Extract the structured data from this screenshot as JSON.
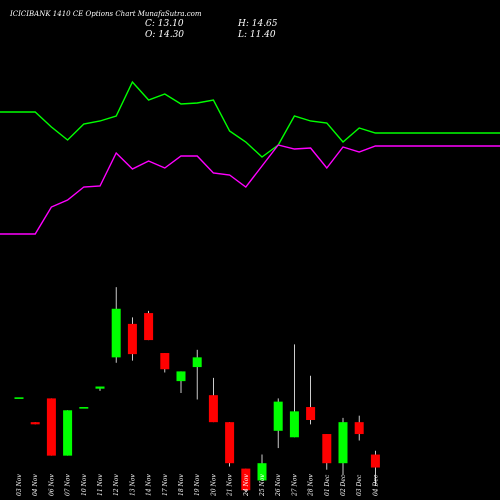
{
  "chart_data": {
    "type": "candlestick",
    "title": "ICICIBANK 1410 CE Options Chart MunafaSutra.com",
    "ohlc_readout": {
      "close": "C: 13.10",
      "open": "O: 14.30",
      "high": "H: 14.65",
      "low": "L: 11.40"
    },
    "categories": [
      "03 Nov",
      "04 Nov",
      "06 Nov",
      "07 Nov",
      "10 Nov",
      "11 Nov",
      "12 Nov",
      "13 Nov",
      "14 Nov",
      "17 Nov",
      "18 Nov",
      "19 Nov",
      "20 Nov",
      "21 Nov",
      "24 Nov",
      "25 Nov",
      "26 Nov",
      "27 Nov",
      "28 Nov",
      "01 Dec",
      "02 Dec",
      "03 Dec",
      "04 Dec"
    ],
    "candles": [
      {
        "o": 19.6,
        "h": 19.6,
        "l": 19.6,
        "c": 19.6
      },
      {
        "o": 17.3,
        "h": 17.3,
        "l": 17.1,
        "c": 17.1
      },
      {
        "o": 19.5,
        "h": 19.5,
        "l": 14.2,
        "c": 14.2
      },
      {
        "o": 14.2,
        "h": 18.4,
        "l": 14.2,
        "c": 18.4
      },
      {
        "o": 18.7,
        "h": 18.7,
        "l": 18.7,
        "c": 18.7
      },
      {
        "o": 20.4,
        "h": 20.6,
        "l": 20.2,
        "c": 20.6
      },
      {
        "o": 23.3,
        "h": 29.8,
        "l": 22.8,
        "c": 27.8
      },
      {
        "o": 26.4,
        "h": 27.0,
        "l": 23.0,
        "c": 23.6
      },
      {
        "o": 27.4,
        "h": 27.6,
        "l": 24.9,
        "c": 24.9
      },
      {
        "o": 23.7,
        "h": 23.7,
        "l": 21.9,
        "c": 22.2
      },
      {
        "o": 21.1,
        "h": 22.0,
        "l": 20.0,
        "c": 22.0
      },
      {
        "o": 22.4,
        "h": 24.0,
        "l": 19.4,
        "c": 23.3
      },
      {
        "o": 19.8,
        "h": 21.4,
        "l": 17.3,
        "c": 17.3
      },
      {
        "o": 17.3,
        "h": 17.3,
        "l": 13.2,
        "c": 13.5
      },
      {
        "o": 13.0,
        "h": 13.0,
        "l": 10.8,
        "c": 11.0
      },
      {
        "o": 11.9,
        "h": 14.3,
        "l": 11.9,
        "c": 13.5
      },
      {
        "o": 16.5,
        "h": 19.5,
        "l": 14.9,
        "c": 19.2
      },
      {
        "o": 15.9,
        "h": 24.5,
        "l": 15.9,
        "c": 18.3
      },
      {
        "o": 18.7,
        "h": 21.6,
        "l": 17.1,
        "c": 17.5
      },
      {
        "o": 16.2,
        "h": 16.2,
        "l": 12.9,
        "c": 13.5
      },
      {
        "o": 13.5,
        "h": 17.7,
        "l": 12.4,
        "c": 17.3
      },
      {
        "o": 17.3,
        "h": 17.9,
        "l": 15.6,
        "c": 16.2
      },
      {
        "o": 14.3,
        "h": 14.65,
        "l": 11.4,
        "c": 13.1
      }
    ],
    "series": [
      {
        "color": "#00ff00",
        "values": [
          112,
          112,
          127,
          140,
          124,
          121,
          116,
          82,
          100,
          94,
          104,
          103,
          100,
          131,
          142,
          157,
          145,
          116,
          121,
          123,
          142,
          128,
          133
        ]
      },
      {
        "color": "#ff00ff",
        "values": [
          234,
          234,
          207,
          200,
          187,
          186,
          153,
          169,
          161,
          168,
          156,
          156,
          173,
          175,
          187,
          166,
          145,
          149,
          148,
          168,
          147,
          152,
          146
        ]
      }
    ],
    "colors": {
      "up": "#00ff00",
      "down": "#ff0000",
      "background": "#000000"
    }
  }
}
